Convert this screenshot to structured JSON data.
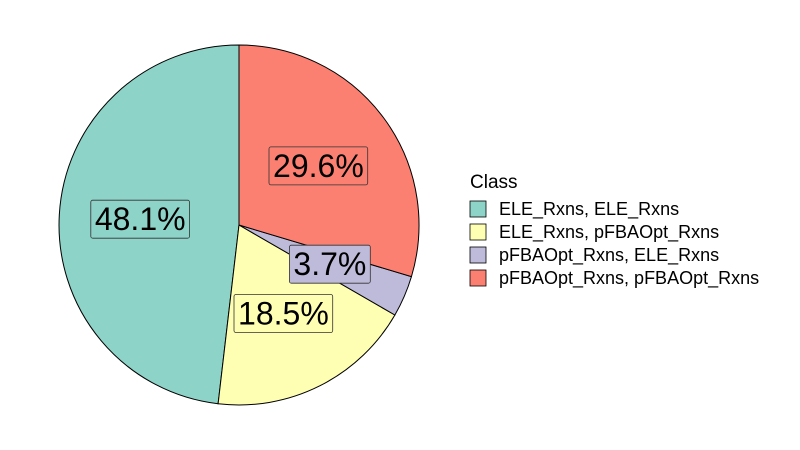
{
  "chart_data": {
    "type": "pie",
    "title": "",
    "legend": {
      "title": "Class",
      "position": "right"
    },
    "start": "12 o'clock",
    "direction": "counterclockwise",
    "slices": [
      {
        "name": "ELE_Rxns, ELE_Rxns",
        "value": 48.1,
        "label": "48.1%",
        "color": "#8DD3C7"
      },
      {
        "name": "ELE_Rxns, pFBAOpt_Rxns",
        "value": 18.5,
        "label": "18.5%",
        "color": "#FFFFB3"
      },
      {
        "name": "pFBAOpt_Rxns, ELE_Rxns",
        "value": 3.7,
        "label": "3.7%",
        "color": "#BEBADA"
      },
      {
        "name": "pFBAOpt_Rxns, pFBAOpt_Rxns",
        "value": 29.6,
        "label": "29.6%",
        "color": "#FB8072"
      }
    ]
  }
}
